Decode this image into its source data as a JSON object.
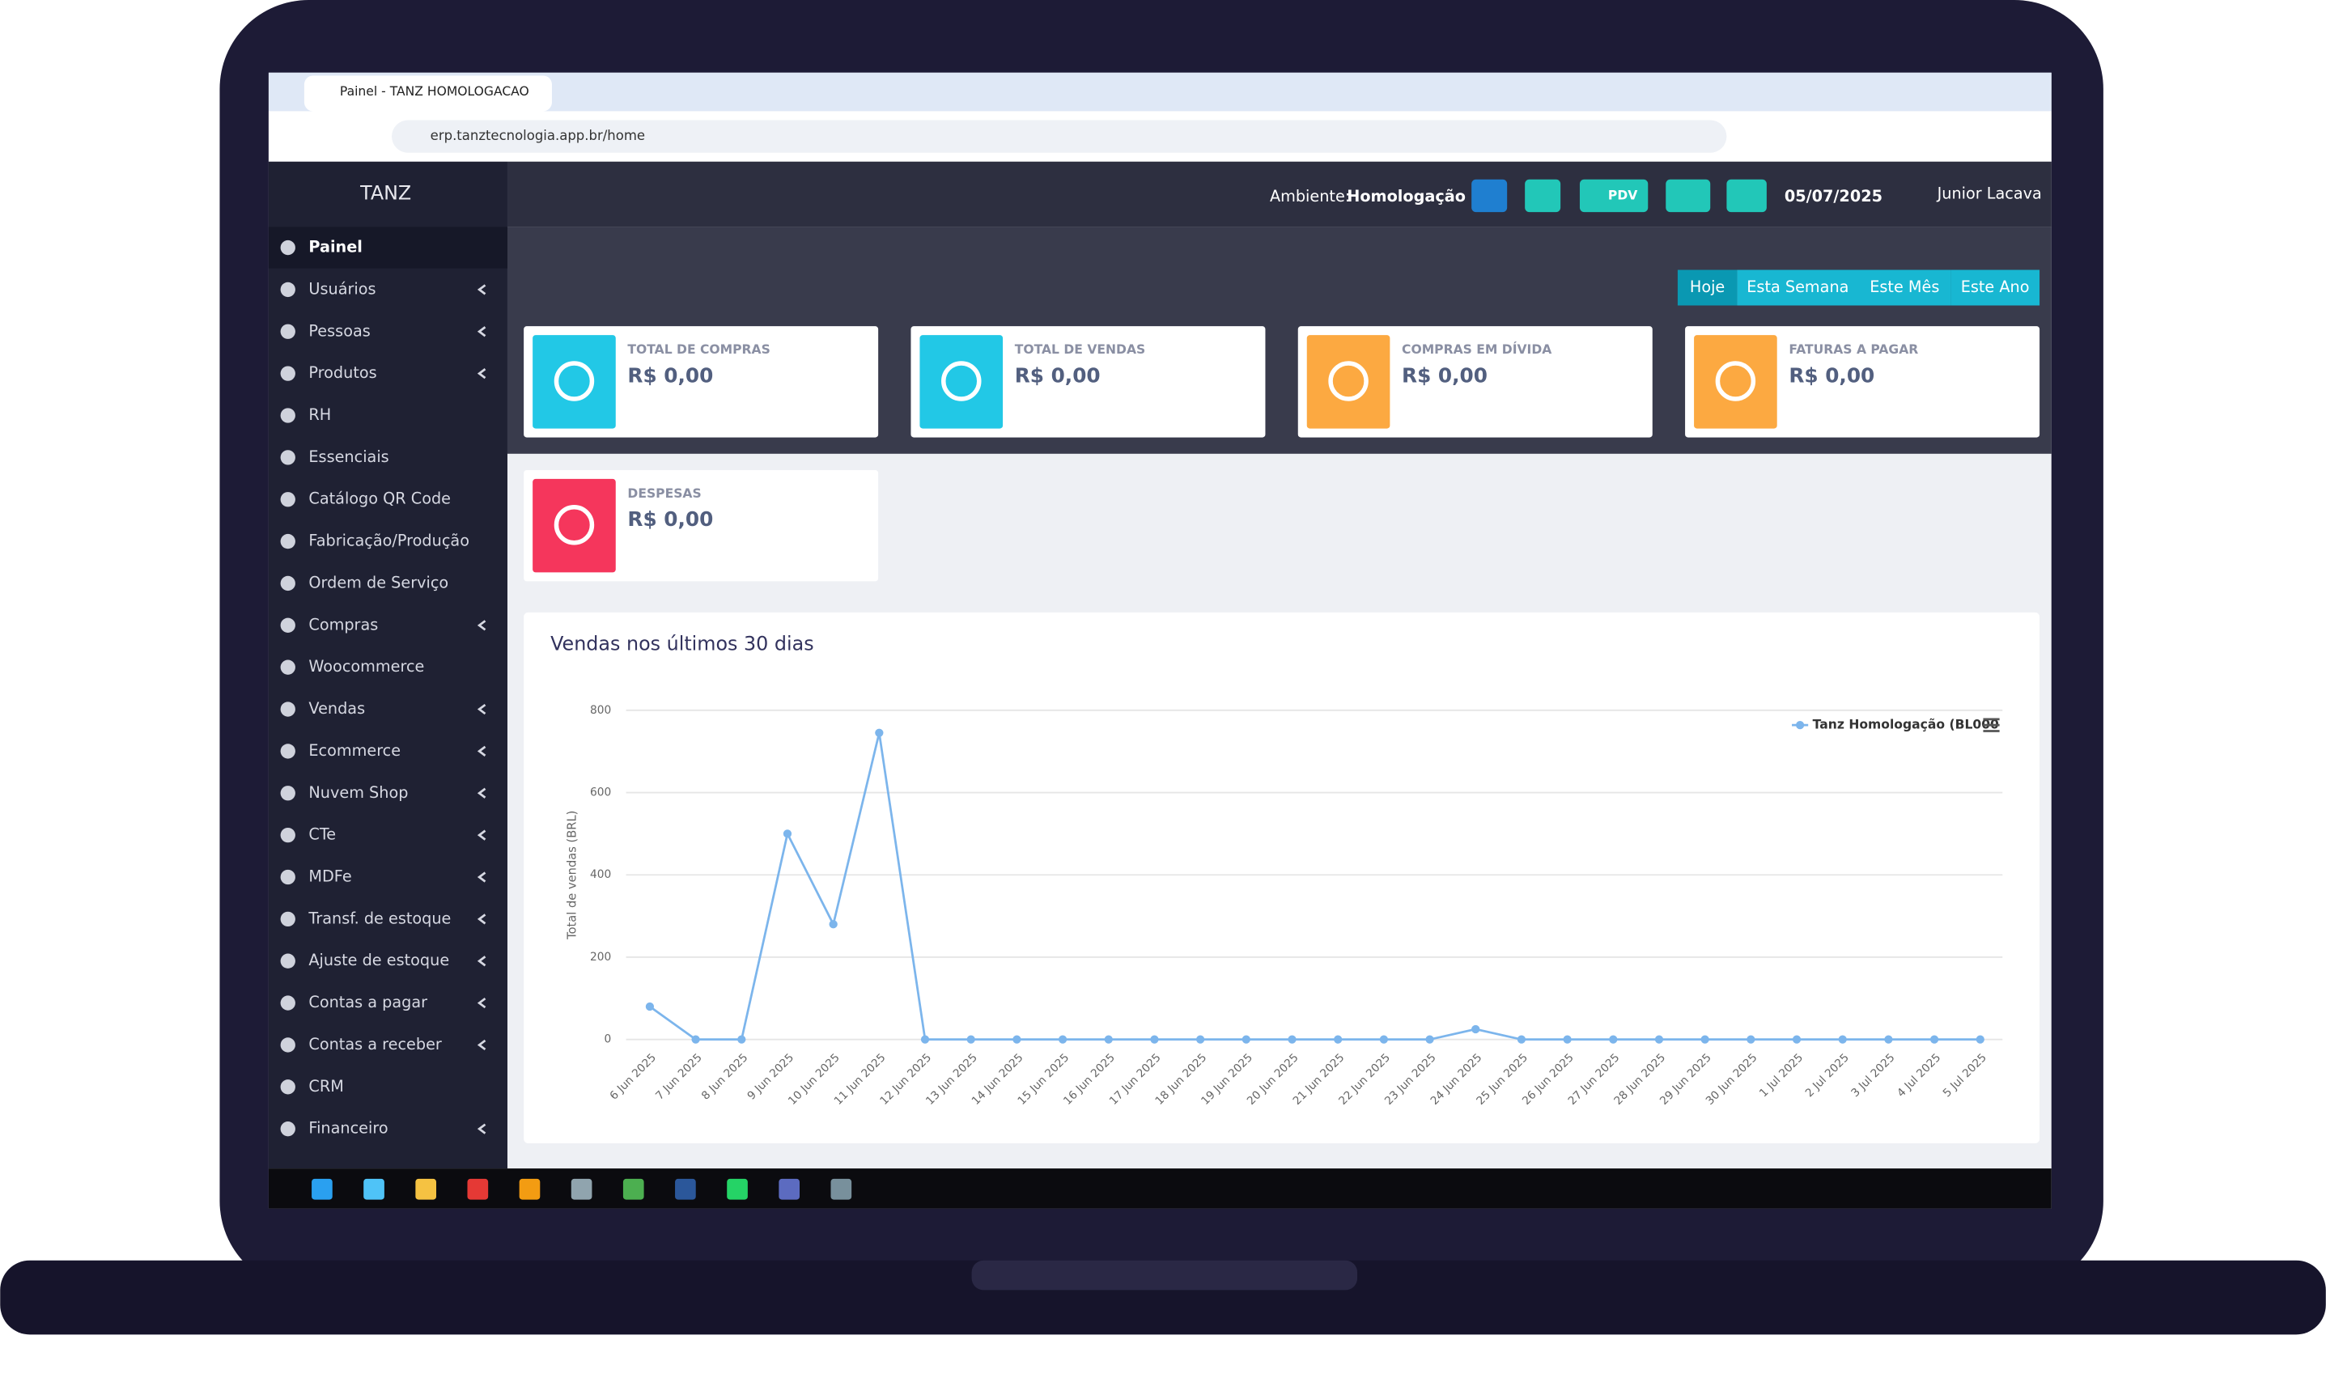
{
  "browser": {
    "tab_title": "Painel - TANZ HOMOLOGACAO",
    "url": "erp.tanztecnologia.app.br/home"
  },
  "sidebar": {
    "brand": "TANZ",
    "items": [
      {
        "label": "Painel",
        "active": true
      },
      {
        "label": "Usuários",
        "submenu": true
      },
      {
        "label": "Pessoas",
        "submenu": true
      },
      {
        "label": "Produtos",
        "submenu": true
      },
      {
        "label": "RH"
      },
      {
        "label": "Essenciais"
      },
      {
        "label": "Catálogo QR Code"
      },
      {
        "label": "Fabricação/Produção"
      },
      {
        "label": "Ordem de Serviço"
      },
      {
        "label": "Compras",
        "submenu": true
      },
      {
        "label": "Woocommerce"
      },
      {
        "label": "Vendas",
        "submenu": true
      },
      {
        "label": "Ecommerce",
        "submenu": true
      },
      {
        "label": "Nuvem Shop",
        "submenu": true
      },
      {
        "label": "CTe",
        "submenu": true
      },
      {
        "label": "MDFe",
        "submenu": true
      },
      {
        "label": "Transf. de estoque",
        "submenu": true
      },
      {
        "label": "Ajuste de estoque",
        "submenu": true
      },
      {
        "label": "Contas a pagar",
        "submenu": true
      },
      {
        "label": "Contas a receber",
        "submenu": true
      },
      {
        "label": "CRM"
      },
      {
        "label": "Financeiro",
        "submenu": true
      }
    ]
  },
  "header": {
    "environment_label": "Ambiente:",
    "environment": "Homologação",
    "pdv": "PDV",
    "date": "05/07/2025",
    "user": "Junior Lacava"
  },
  "filters": [
    "Hoje",
    "Esta Semana",
    "Este Mês",
    "Este Ano"
  ],
  "cards": [
    {
      "label": "TOTAL DE COMPRAS",
      "value": "R$ 0,00",
      "color": "#22c8e6"
    },
    {
      "label": "TOTAL DE VENDAS",
      "value": "R$ 0,00",
      "color": "#22c8e6"
    },
    {
      "label": "COMPRAS EM DÍVIDA",
      "value": "R$ 0,00",
      "color": "#fca941"
    },
    {
      "label": "FATURAS A PAGAR",
      "value": "R$ 0,00",
      "color": "#fca941"
    },
    {
      "label": "DESPESAS",
      "value": "R$ 0,00",
      "color": "#f5365c"
    }
  ],
  "chart_data": {
    "type": "line",
    "title": "Vendas nos últimos 30 dias",
    "y_label": "Total de vendas (BRL)",
    "categories": [
      "6 Jun 2025",
      "7 Jun 2025",
      "8 Jun 2025",
      "9 Jun 2025",
      "10 Jun 2025",
      "11 Jun 2025",
      "12 Jun 2025",
      "13 Jun 2025",
      "14 Jun 2025",
      "15 Jun 2025",
      "16 Jun 2025",
      "17 Jun 2025",
      "18 Jun 2025",
      "19 Jun 2025",
      "20 Jun 2025",
      "21 Jun 2025",
      "22 Jun 2025",
      "23 Jun 2025",
      "24 Jun 2025",
      "25 Jun 2025",
      "26 Jun 2025",
      "27 Jun 2025",
      "28 Jun 2025",
      "29 Jun 2025",
      "30 Jun 2025",
      "1 Jul 2025",
      "2 Jul 2025",
      "3 Jul 2025",
      "4 Jul 2025",
      "5 Jul 2025"
    ],
    "series": [
      {
        "name": "Tanz Homologação (BL000",
        "color": "#7cb5ec",
        "values": [
          80,
          0,
          0,
          500,
          280,
          745,
          0,
          0,
          0,
          0,
          0,
          0,
          0,
          0,
          0,
          0,
          0,
          0,
          25,
          0,
          0,
          0,
          0,
          0,
          0,
          0,
          0,
          0,
          0,
          0
        ]
      }
    ],
    "ylim": [
      0,
      800
    ],
    "yticks": [
      0,
      200,
      400,
      600,
      800
    ],
    "grid": true
  }
}
